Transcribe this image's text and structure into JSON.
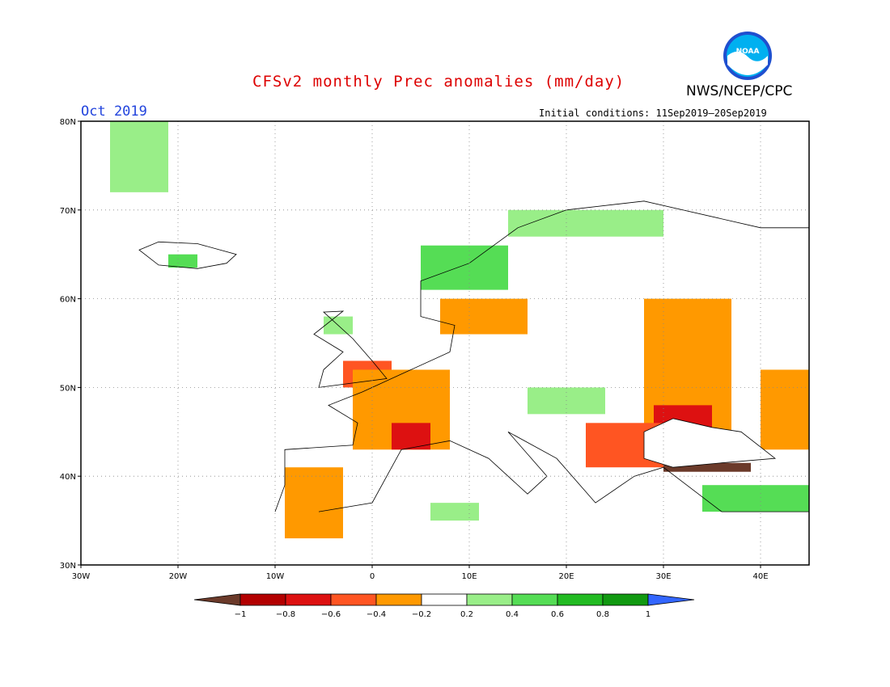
{
  "header": {
    "title": "CFSv2 monthly Prec anomalies (mm/day)",
    "agency": "NWS/NCEP/CPC",
    "logo_text": "NOAA",
    "month": "Oct 2019",
    "initial_conditions": "Initial conditions: 11Sep2019–20Sep2019"
  },
  "map": {
    "lon_range": [
      -30,
      45
    ],
    "lat_range": [
      30,
      80
    ],
    "lat_labels": [
      "30N",
      "40N",
      "50N",
      "60N",
      "70N",
      "80N"
    ],
    "lon_labels": [
      "30W",
      "20W",
      "10W",
      "0",
      "10E",
      "20E",
      "30E",
      "40E"
    ],
    "lat_values": [
      30,
      40,
      50,
      60,
      70,
      80
    ],
    "lon_values": [
      -30,
      -20,
      -10,
      0,
      10,
      20,
      30,
      40
    ]
  },
  "colorbar": {
    "labels": [
      "−1",
      "−0.8",
      "−0.6",
      "−0.4",
      "−0.2",
      "0.2",
      "0.4",
      "0.6",
      "0.8",
      "1"
    ],
    "colors": [
      "#6b3a2a",
      "#b30000",
      "#dd1111",
      "#ff5522",
      "#ff9900",
      "#ffffff",
      "#99ee88",
      "#55dd55",
      "#22bb22",
      "#119911",
      "#3366ff"
    ]
  },
  "anomaly_regions": [
    {
      "name": "greenland-wet",
      "value": 0.3,
      "color": "#99ee88",
      "lon": [
        -27,
        -21
      ],
      "lat": [
        72,
        80
      ]
    },
    {
      "name": "iceland-wet",
      "value": 0.4,
      "color": "#55dd55",
      "lon": [
        -21,
        -18
      ],
      "lat": [
        63.5,
        65
      ]
    },
    {
      "name": "norway-wet",
      "value": 0.4,
      "color": "#55dd55",
      "lon": [
        5,
        14
      ],
      "lat": [
        61,
        66
      ]
    },
    {
      "name": "scandinavia-north-wet",
      "value": 0.3,
      "color": "#99ee88",
      "lon": [
        14,
        30
      ],
      "lat": [
        67,
        70
      ]
    },
    {
      "name": "scotland-wet",
      "value": 0.3,
      "color": "#99ee88",
      "lon": [
        -5,
        -2
      ],
      "lat": [
        56,
        58
      ]
    },
    {
      "name": "sweden-south-dry",
      "value": -0.3,
      "color": "#ff9900",
      "lon": [
        7,
        16
      ],
      "lat": [
        56,
        60
      ]
    },
    {
      "name": "england-dry",
      "value": -0.5,
      "color": "#ff5522",
      "lon": [
        -3,
        2
      ],
      "lat": [
        50,
        53
      ]
    },
    {
      "name": "france-dry",
      "value": -0.3,
      "color": "#ff9900",
      "lon": [
        -2,
        8
      ],
      "lat": [
        43,
        52
      ]
    },
    {
      "name": "france-core-dry",
      "value": -0.7,
      "color": "#dd1111",
      "lon": [
        2,
        6
      ],
      "lat": [
        43,
        46
      ]
    },
    {
      "name": "iberia-dry",
      "value": -0.3,
      "color": "#ff9900",
      "lon": [
        -9,
        -3
      ],
      "lat": [
        33,
        41
      ]
    },
    {
      "name": "central-europe-wet",
      "value": 0.3,
      "color": "#99ee88",
      "lon": [
        16,
        24
      ],
      "lat": [
        47,
        50
      ]
    },
    {
      "name": "ukraine-dry",
      "value": -0.3,
      "color": "#ff9900",
      "lon": [
        28,
        37
      ],
      "lat": [
        45,
        60
      ]
    },
    {
      "name": "black-sea-north-dry",
      "value": -0.7,
      "color": "#dd1111",
      "lon": [
        29,
        35
      ],
      "lat": [
        45,
        48
      ]
    },
    {
      "name": "balkans-dry",
      "value": -0.5,
      "color": "#ff5522",
      "lon": [
        22,
        30
      ],
      "lat": [
        41,
        46
      ]
    },
    {
      "name": "turkey-very-dry",
      "value": -1.0,
      "color": "#6b3a2a",
      "lon": [
        30,
        39
      ],
      "lat": [
        40.5,
        41.5
      ]
    },
    {
      "name": "turkey-south-wet",
      "value": 0.4,
      "color": "#55dd55",
      "lon": [
        34,
        45
      ],
      "lat": [
        36,
        39
      ]
    },
    {
      "name": "russia-east-dry",
      "value": -0.3,
      "color": "#ff9900",
      "lon": [
        40,
        45
      ],
      "lat": [
        43,
        52
      ]
    },
    {
      "name": "north-africa-wet",
      "value": 0.3,
      "color": "#99ee88",
      "lon": [
        6,
        11
      ],
      "lat": [
        35,
        37
      ]
    }
  ]
}
